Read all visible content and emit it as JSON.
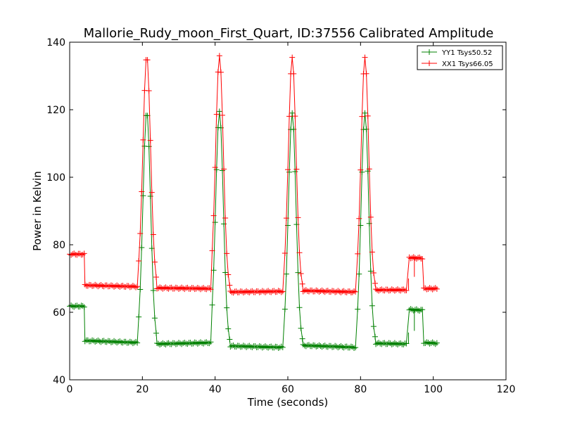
{
  "chart_data": {
    "type": "line",
    "title": "Mallorie_Rudy_moon_First_Quart, ID:37556 Calibrated Amplitude",
    "xlabel": "Time (seconds)",
    "ylabel": "Power in Kelvin",
    "xlim": [
      0,
      120
    ],
    "ylim": [
      40,
      140
    ],
    "xticks": [
      0,
      20,
      40,
      60,
      80,
      100,
      120
    ],
    "yticks": [
      40,
      60,
      80,
      100,
      120,
      140
    ],
    "grid": false,
    "legend_position": "top-right",
    "marker": "+",
    "series": [
      {
        "name": "YY1 Tsys50.52",
        "color": "#008000",
        "baseline_segments": [
          {
            "x0": 0,
            "x1": 4.0,
            "y0": 61.8,
            "y1": 61.8
          },
          {
            "x0": 4.2,
            "x1": 18.6,
            "y0": 51.6,
            "y1": 51.0
          },
          {
            "x0": 24.0,
            "x1": 38.8,
            "y0": 50.6,
            "y1": 51.0
          },
          {
            "x0": 44.2,
            "x1": 58.8,
            "y0": 50.0,
            "y1": 49.6
          },
          {
            "x0": 64.2,
            "x1": 78.8,
            "y0": 50.2,
            "y1": 49.6
          },
          {
            "x0": 84.2,
            "x1": 92.6,
            "y0": 50.8,
            "y1": 50.6
          },
          {
            "x0": 93.4,
            "x1": 97.0,
            "y0": 60.8,
            "y1": 60.6
          },
          {
            "x0": 97.4,
            "x1": 101.0,
            "y0": 51.0,
            "y1": 50.8
          }
        ],
        "peaks": [
          {
            "center": 21.2,
            "height": 119.5
          },
          {
            "center": 41.2,
            "height": 119.5
          },
          {
            "center": 61.2,
            "height": 119.0
          },
          {
            "center": 81.2,
            "height": 119.0
          }
        ],
        "dips": [
          {
            "x": 93.2,
            "y": 54.0
          },
          {
            "x": 94.8,
            "y": 54.5
          }
        ]
      },
      {
        "name": "XX1 Tsys66.05",
        "color": "#ff0000",
        "baseline_segments": [
          {
            "x0": 0,
            "x1": 4.0,
            "y0": 77.2,
            "y1": 77.2
          },
          {
            "x0": 4.2,
            "x1": 18.6,
            "y0": 68.0,
            "y1": 67.6
          },
          {
            "x0": 24.0,
            "x1": 38.8,
            "y0": 67.2,
            "y1": 67.0
          },
          {
            "x0": 44.2,
            "x1": 58.8,
            "y0": 66.0,
            "y1": 66.2
          },
          {
            "x0": 64.2,
            "x1": 78.8,
            "y0": 66.4,
            "y1": 66.0
          },
          {
            "x0": 84.2,
            "x1": 92.6,
            "y0": 66.6,
            "y1": 66.6
          },
          {
            "x0": 93.4,
            "x1": 97.0,
            "y0": 76.2,
            "y1": 76.0
          },
          {
            "x0": 97.4,
            "x1": 101.0,
            "y0": 67.0,
            "y1": 67.0
          }
        ],
        "peaks": [
          {
            "center": 21.2,
            "height": 136.0
          },
          {
            "center": 41.2,
            "height": 136.0
          },
          {
            "center": 61.2,
            "height": 135.5
          },
          {
            "center": 81.2,
            "height": 135.5
          }
        ],
        "dips": [
          {
            "x": 93.2,
            "y": 70.0
          },
          {
            "x": 94.8,
            "y": 70.5
          }
        ]
      }
    ]
  }
}
